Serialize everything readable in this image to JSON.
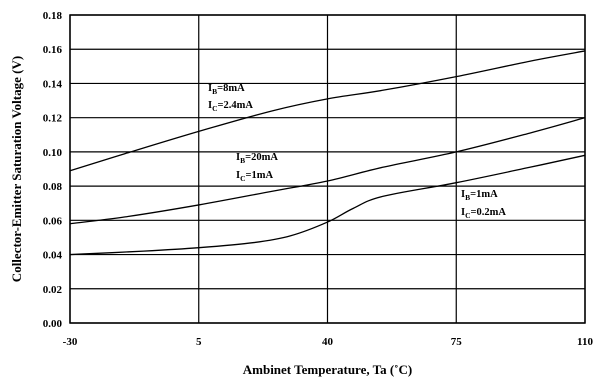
{
  "chart_data": {
    "type": "line",
    "xlabel": "Ambinet Temperature, Ta (˚C)",
    "ylabel": "Collector-Emitter Saturation Voltage (V)",
    "xlim": [
      -30,
      110
    ],
    "ylim": [
      0,
      0.18
    ],
    "x_ticks": [
      "-30",
      "5",
      "40",
      "75",
      "110"
    ],
    "y_ticks": [
      "0.00",
      "0.02",
      "0.04",
      "0.06",
      "0.08",
      "0.10",
      "0.12",
      "0.14",
      "0.16",
      "0.18"
    ],
    "grid": true,
    "series": [
      {
        "x": [
          -30,
          -15,
          5,
          25,
          40,
          55,
          75,
          95,
          110
        ],
        "values": [
          0.089,
          0.099,
          0.112,
          0.124,
          0.131,
          0.136,
          0.144,
          0.153,
          0.159
        ],
        "label": {
          "line1_main": "I",
          "line1_sub": "B",
          "line1_rest": "=8mA",
          "line2_main": "I",
          "line2_sub": "C",
          "line2_rest": "=2.4mA"
        }
      },
      {
        "x": [
          -30,
          -15,
          5,
          25,
          40,
          55,
          75,
          95,
          110
        ],
        "values": [
          0.058,
          0.062,
          0.069,
          0.077,
          0.083,
          0.091,
          0.1,
          0.111,
          0.12
        ],
        "label": {
          "line1_main": "I",
          "line1_sub": "B",
          "line1_rest": "=20mA",
          "line2_main": "I",
          "line2_sub": "C",
          "line2_rest": "=1mA"
        }
      },
      {
        "x": [
          -30,
          -10,
          5,
          20,
          30,
          40,
          47,
          55,
          75,
          95,
          110
        ],
        "values": [
          0.04,
          0.042,
          0.044,
          0.047,
          0.051,
          0.059,
          0.067,
          0.074,
          0.082,
          0.091,
          0.098
        ],
        "label": {
          "line1_main": "I",
          "line1_sub": "B",
          "line1_rest": "=1mA",
          "line2_main": "I",
          "line2_sub": "C",
          "line2_rest": "=0.2mA"
        }
      }
    ]
  }
}
